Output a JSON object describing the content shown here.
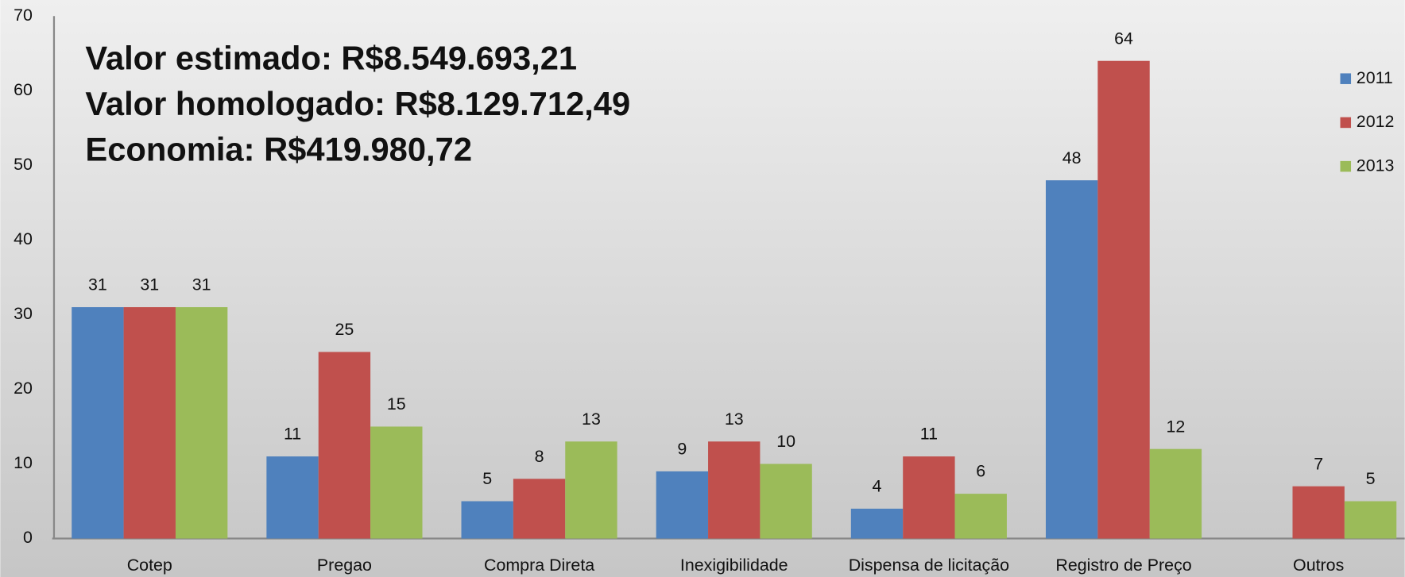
{
  "chart_data": {
    "type": "bar",
    "annotations": [
      "Valor estimado: R$8.549.693,21",
      "Valor homologado: R$8.129.712,49",
      "Economia: R$419.980,72"
    ],
    "categories": [
      "Cotep",
      "Pregao",
      "Compra Direta",
      "Inexigibilidade",
      "Dispensa de licitação",
      "Registro de Preço",
      "Outros"
    ],
    "series": [
      {
        "name": "2011",
        "color": "#4f81bd",
        "values": [
          31,
          11,
          5,
          9,
          4,
          48,
          null
        ]
      },
      {
        "name": "2012",
        "color": "#c0504d",
        "values": [
          31,
          25,
          8,
          13,
          11,
          64,
          7
        ]
      },
      {
        "name": "2013",
        "color": "#9bbb59",
        "values": [
          31,
          15,
          13,
          10,
          6,
          12,
          5
        ]
      }
    ],
    "ylim": [
      0,
      70
    ],
    "yticks": [
      0,
      10,
      20,
      30,
      40,
      50,
      60,
      70
    ],
    "grid": false,
    "legend": "right"
  }
}
